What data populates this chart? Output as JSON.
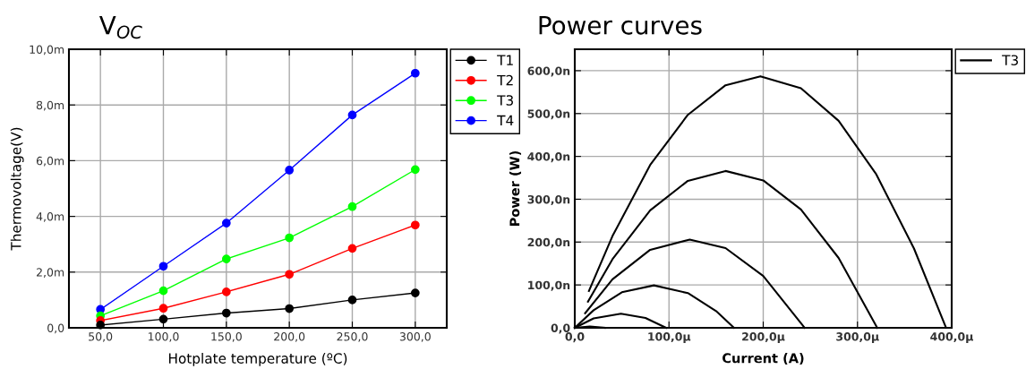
{
  "chart_data": [
    {
      "type": "line",
      "title": "V$_{OC}$",
      "xlabel": "Hotplate temperature (ºC)",
      "ylabel": "Thermovoltage(V)",
      "x": [
        50,
        100,
        150,
        200,
        250,
        300
      ],
      "series": [
        {
          "name": "T1",
          "color": "#000000",
          "values": [
            0.1,
            0.31,
            0.53,
            0.69,
            1.0,
            1.25
          ]
        },
        {
          "name": "T2",
          "color": "#ff0000",
          "values": [
            0.26,
            0.7,
            1.29,
            1.92,
            2.85,
            3.69
          ]
        },
        {
          "name": "T3",
          "color": "#00ff00",
          "values": [
            0.43,
            1.33,
            2.47,
            3.23,
            4.35,
            5.68
          ]
        },
        {
          "name": "T4",
          "color": "#0000ff",
          "values": [
            0.66,
            2.21,
            3.76,
            5.66,
            7.64,
            9.14
          ]
        }
      ],
      "xlim": [
        25,
        325
      ],
      "ylim": [
        0,
        10
      ],
      "xticks": [
        {
          "value": 50,
          "label": "50,0"
        },
        {
          "value": 100,
          "label": "100,0"
        },
        {
          "value": 150,
          "label": "150,0"
        },
        {
          "value": 200,
          "label": "200,0"
        },
        {
          "value": 250,
          "label": "250,0"
        },
        {
          "value": 300,
          "label": "300,0"
        }
      ],
      "yticks": [
        {
          "value": 0,
          "label": "0,0"
        },
        {
          "value": 2,
          "label": "2,0m"
        },
        {
          "value": 4,
          "label": "4,0m"
        },
        {
          "value": 6,
          "label": "6,0m"
        },
        {
          "value": 8,
          "label": "8,0m"
        },
        {
          "value": 10,
          "label": "10,0m"
        }
      ],
      "grid": true,
      "legend": "top right",
      "marker": "circle",
      "line_style": "solid"
    },
    {
      "type": "line",
      "title": "Power curves",
      "xlabel": "Current (A)",
      "ylabel": "Power (W)",
      "series": [
        {
          "name": "T3",
          "color": "#000000",
          "x": [
            15,
            40,
            80,
            120,
            160,
            197,
            240,
            280,
            320,
            360,
            394
          ],
          "values": [
            86,
            214,
            380,
            497,
            566,
            587,
            559,
            483,
            358,
            185,
            0
          ]
        },
        {
          "color": "#000000",
          "x": [
            14,
            40,
            80,
            120,
            160,
            200,
            240,
            280,
            321
          ],
          "values": [
            61,
            160,
            274,
            343,
            366,
            344,
            276,
            163,
            0
          ]
        },
        {
          "color": "#000000",
          "x": [
            11,
            40,
            80,
            122,
            160,
            200,
            244
          ],
          "values": [
            34,
            113,
            182,
            206,
            186,
            121,
            0
          ]
        },
        {
          "color": "#000000",
          "x": [
            0,
            20,
            50,
            84,
            120,
            150,
            169
          ],
          "values": [
            0,
            41,
            83,
            99,
            81,
            39,
            0
          ]
        },
        {
          "color": "#000000",
          "x": [
            0,
            20,
            49,
            75,
            97
          ],
          "values": [
            0,
            22,
            33,
            23,
            0
          ]
        },
        {
          "color": "#000000",
          "x": [
            0,
            16,
            32
          ],
          "values": [
            0,
            3,
            0
          ]
        }
      ],
      "xlim": [
        0,
        400
      ],
      "ylim": [
        0,
        650
      ],
      "xticks": [
        {
          "value": 0,
          "label": "0,0"
        },
        {
          "value": 100,
          "label": "100,0µ"
        },
        {
          "value": 200,
          "label": "200,0µ"
        },
        {
          "value": 300,
          "label": "300,0µ"
        },
        {
          "value": 400,
          "label": "400,0µ"
        }
      ],
      "yticks": [
        {
          "value": 0,
          "label": "0,0"
        },
        {
          "value": 100,
          "label": "100,0n"
        },
        {
          "value": 200,
          "label": "200,0n"
        },
        {
          "value": 300,
          "label": "300,0n"
        },
        {
          "value": 400,
          "label": "400,0n"
        },
        {
          "value": 500,
          "label": "500,0n"
        },
        {
          "value": 600,
          "label": "600,0n"
        }
      ],
      "grid": true,
      "legend": "top right",
      "marker": "none",
      "line_style": "solid"
    }
  ]
}
